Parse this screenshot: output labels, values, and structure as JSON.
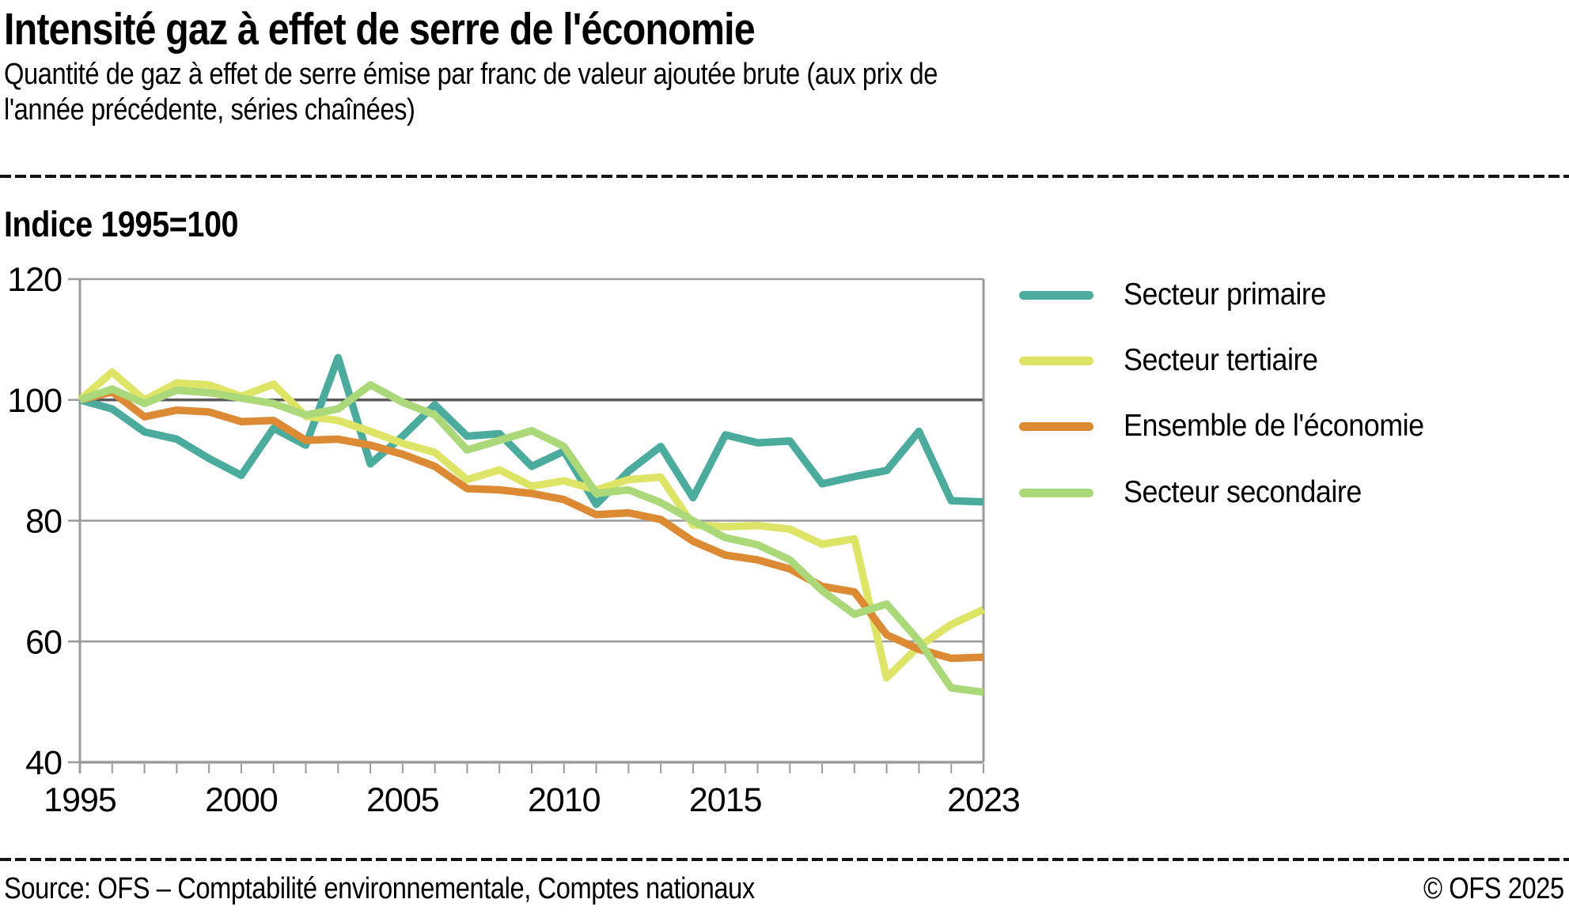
{
  "header": {
    "title": "Intensité gaz à effet de serre de l'économie",
    "subtitle_line1": "Quantité de gaz à effet de serre émise par franc de valeur ajoutée brute (aux prix de",
    "subtitle_line2": "l'année précédente, séries chaînées)"
  },
  "footer": {
    "source": "Source: OFS – Comptabilité environnementale, Comptes nationaux",
    "copyright": "© OFS 2025"
  },
  "chart_data": {
    "type": "line",
    "index_label": "Indice 1995=100",
    "grid": true,
    "legend_position": "right",
    "ylim": [
      40,
      120
    ],
    "y_ticks": [
      120,
      100,
      80,
      60,
      40
    ],
    "reference_value": 100,
    "x_tick_years": [
      1995,
      2000,
      2005,
      2010,
      2015,
      2023
    ],
    "x_tick_labels": [
      "1995",
      "2000",
      "2005",
      "2010",
      "2015",
      "2023"
    ],
    "axis_colors": {
      "grid": "#9b9b9b",
      "reference_line": "#59595b",
      "text": "#000000"
    },
    "years": [
      1995,
      1996,
      1997,
      1998,
      1999,
      2000,
      2001,
      2002,
      2003,
      2004,
      2005,
      2006,
      2007,
      2008,
      2009,
      2010,
      2011,
      2012,
      2013,
      2014,
      2015,
      2016,
      2017,
      2018,
      2019,
      2020,
      2021,
      2022,
      2023
    ],
    "series": [
      {
        "name": "Secteur primaire",
        "color": "#4bab9d",
        "values": [
          100,
          98.5,
          94.7,
          93.5,
          90.3,
          87.5,
          95.3,
          92.5,
          107,
          89.4,
          94,
          99.2,
          94,
          94.4,
          89,
          91.5,
          82.7,
          88.2,
          92.3,
          83.8,
          94.2,
          92.9,
          93.2,
          86.1,
          87.3,
          88.3,
          94.8,
          83.3,
          83.1
        ]
      },
      {
        "name": "Secteur tertiaire",
        "color": "#dde466",
        "values": [
          100,
          104.6,
          100,
          102.8,
          102.5,
          100.6,
          102.6,
          97.3,
          96.6,
          94.8,
          92.8,
          91.3,
          86.8,
          88.4,
          85.7,
          86.6,
          85.1,
          86.8,
          87.2,
          79.3,
          79,
          79.2,
          78.6,
          76.1,
          77,
          54,
          59.2,
          62.8,
          65.3
        ]
      },
      {
        "name": "Ensemble de l'économie",
        "color": "#dc8a33",
        "values": [
          100,
          101.3,
          97.2,
          98.3,
          98,
          96.4,
          96.6,
          93.3,
          93.5,
          92.5,
          91,
          89,
          85.3,
          85.1,
          84.5,
          83.5,
          81,
          81.3,
          80.2,
          76.6,
          74.3,
          73.5,
          72,
          69.1,
          68.2,
          61.1,
          58.7,
          57.2,
          57.4
        ]
      },
      {
        "name": "Secteur secondaire",
        "color": "#abd979",
        "values": [
          100,
          101.8,
          99.4,
          101.6,
          101.2,
          100.3,
          99.4,
          97.5,
          98.5,
          102.5,
          99.6,
          97.5,
          91.7,
          93.3,
          94.9,
          92.3,
          84.5,
          85.1,
          83,
          80,
          77.2,
          76,
          73.5,
          68.4,
          64.5,
          66.2,
          60.1,
          52.3,
          51.6
        ]
      }
    ]
  }
}
